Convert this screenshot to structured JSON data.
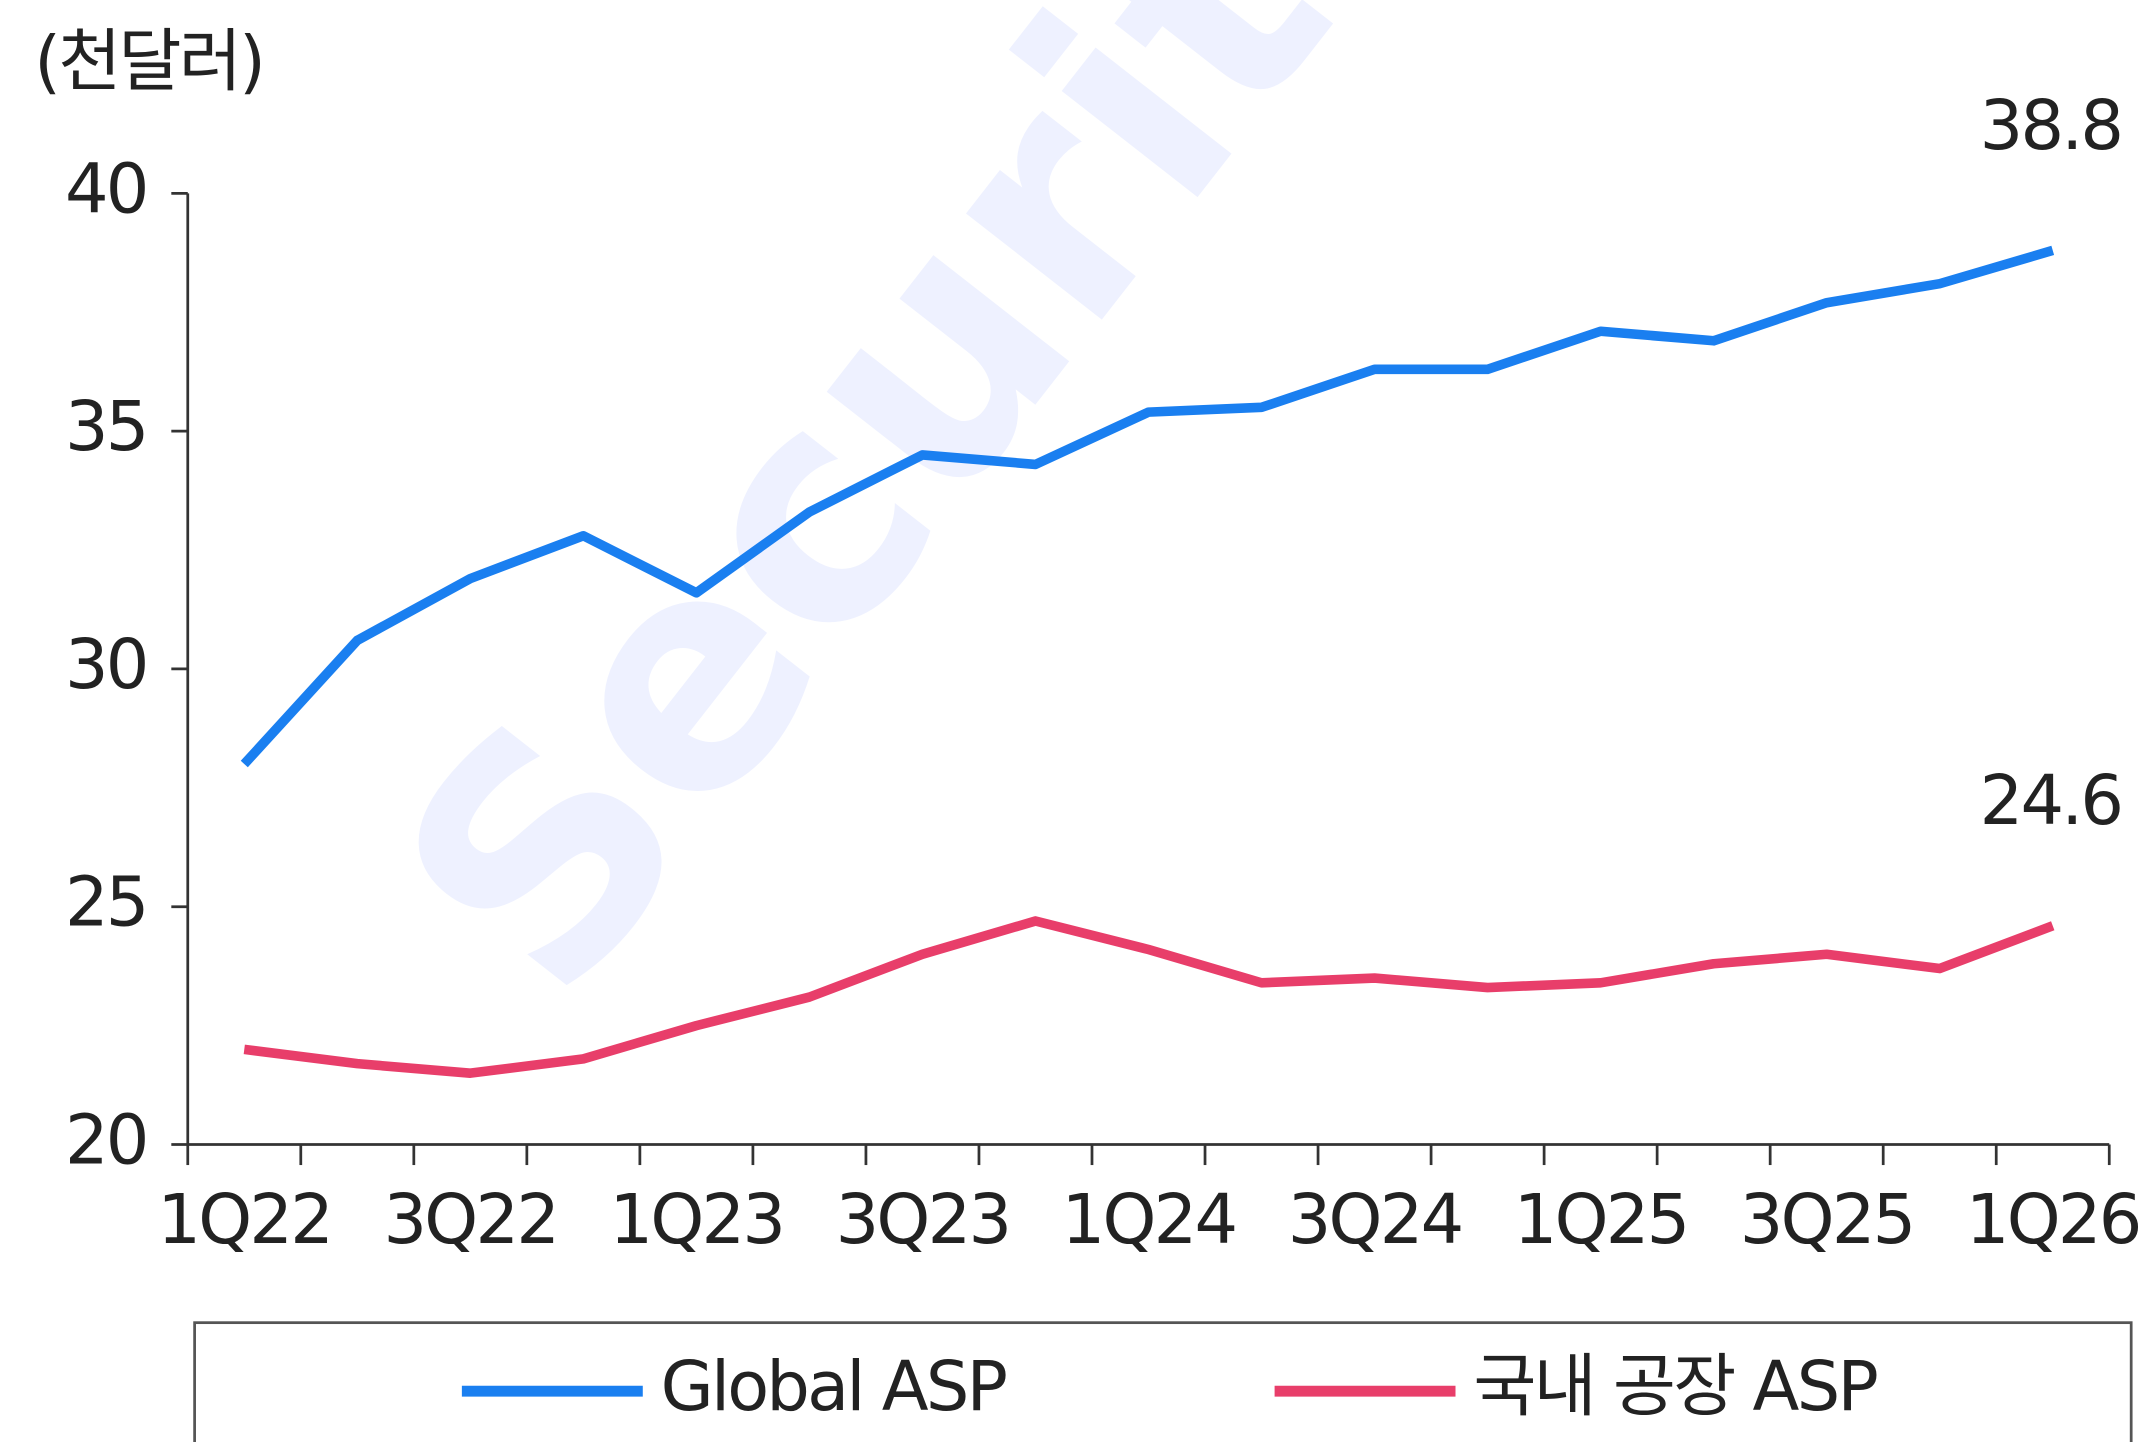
{
  "chart_data": {
    "type": "line",
    "y_axis_label": "(천달러)",
    "watermark": "Securities",
    "categories": [
      "1Q22",
      null,
      "3Q22",
      null,
      "1Q23",
      null,
      "3Q23",
      null,
      "1Q24",
      null,
      "3Q24",
      null,
      "1Q25",
      null,
      "3Q25",
      null,
      "1Q26"
    ],
    "series": [
      {
        "name": "Global ASP",
        "color": "#1a7ff0",
        "values": [
          28.0,
          30.6,
          31.9,
          32.8,
          31.6,
          33.3,
          34.5,
          34.3,
          35.4,
          35.5,
          36.3,
          36.3,
          37.1,
          36.9,
          37.7,
          38.1,
          38.8
        ]
      },
      {
        "name": "국내 공장 ASP",
        "color": "#e83e6a",
        "values": [
          22.0,
          21.7,
          21.5,
          21.8,
          22.5,
          23.1,
          24.0,
          24.7,
          24.1,
          23.4,
          23.5,
          23.3,
          23.4,
          23.8,
          24.0,
          23.7,
          24.6
        ]
      }
    ],
    "ylim": [
      20,
      40
    ],
    "yticks": [
      20,
      25,
      30,
      35,
      40
    ],
    "grid": false,
    "legend": "bottom"
  }
}
